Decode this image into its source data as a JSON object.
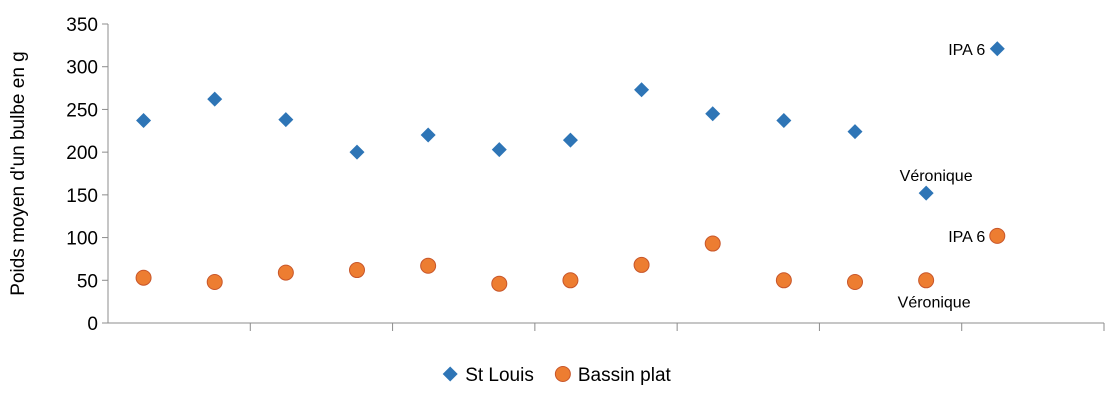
{
  "chart_data": {
    "type": "scatter",
    "title": "",
    "xlabel": "",
    "ylabel": "Poids moyen d'un bulbe en g",
    "ylim": [
      0,
      350
    ],
    "yticks": [
      0,
      50,
      100,
      150,
      200,
      250,
      300,
      350
    ],
    "xlim": [
      0.5,
      14.5
    ],
    "xticks_count": 7,
    "grid": false,
    "legend_position": "bottom",
    "series": [
      {
        "name": "St Louis",
        "marker": "diamond",
        "color": "#2e75b6",
        "x": [
          1,
          2,
          3,
          4,
          5,
          6,
          7,
          8,
          9,
          10,
          11,
          12,
          13
        ],
        "values": [
          237,
          262,
          238,
          200,
          220,
          203,
          214,
          273,
          245,
          237,
          224,
          152,
          321
        ]
      },
      {
        "name": "Bassin plat",
        "marker": "circle",
        "color": "#ed7d31",
        "x": [
          1,
          2,
          3,
          4,
          5,
          6,
          7,
          8,
          9,
          10,
          11,
          12,
          13
        ],
        "values": [
          53,
          48,
          59,
          62,
          67,
          46,
          50,
          68,
          93,
          50,
          48,
          50,
          102
        ]
      }
    ],
    "annotations": [
      {
        "text": "IPA 6",
        "series": 0,
        "point": 12,
        "anchor": "left"
      },
      {
        "text": "Véronique",
        "series": 0,
        "point": 11,
        "anchor": "above"
      },
      {
        "text": "IPA 6",
        "series": 1,
        "point": 12,
        "anchor": "left"
      },
      {
        "text": "Véronique",
        "series": 1,
        "point": 11,
        "anchor": "below"
      }
    ]
  }
}
